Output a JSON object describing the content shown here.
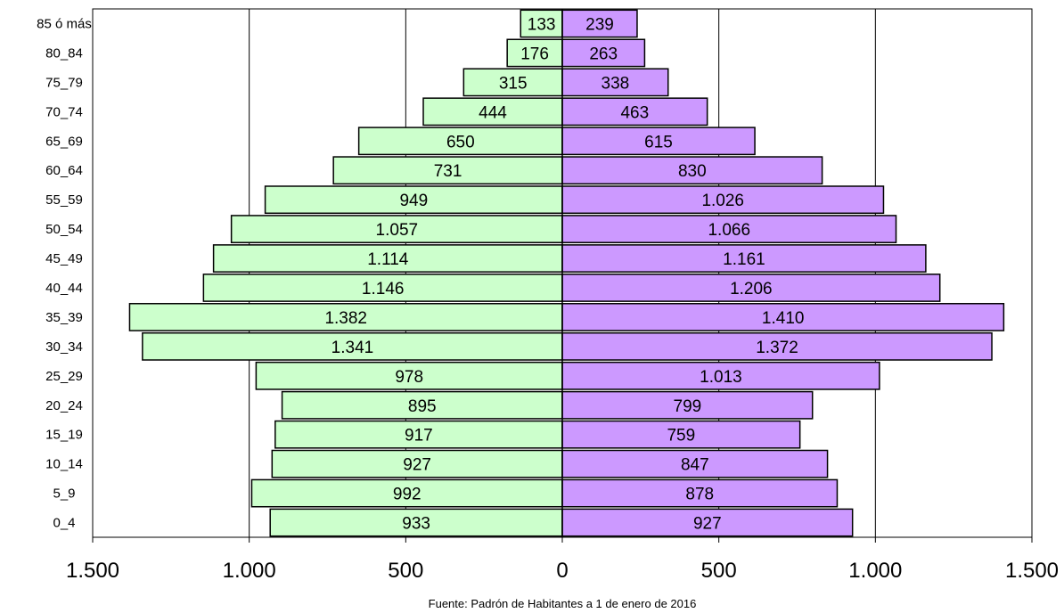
{
  "chart_data": {
    "type": "bar",
    "orientation": "horizontal",
    "layout": "population-pyramid",
    "categories": [
      "0_4",
      "5_9",
      "10_14",
      "15_19",
      "20_24",
      "25_29",
      "30_34",
      "35_39",
      "40_44",
      "45_49",
      "50_54",
      "55_59",
      "60_64",
      "65_69",
      "70_74",
      "75_79",
      "80_84",
      "85 ó más"
    ],
    "series": [
      {
        "side": "left",
        "color": "#ccffcc",
        "values": [
          933,
          992,
          927,
          917,
          895,
          978,
          1341,
          1382,
          1146,
          1114,
          1057,
          949,
          731,
          650,
          444,
          315,
          176,
          133
        ],
        "labels": [
          "933",
          "992",
          "927",
          "917",
          "895",
          "978",
          "1.341",
          "1.382",
          "1.146",
          "1.114",
          "1.057",
          "949",
          "731",
          "650",
          "444",
          "315",
          "176",
          "133"
        ]
      },
      {
        "side": "right",
        "color": "#cc99ff",
        "values": [
          927,
          878,
          847,
          759,
          799,
          1013,
          1372,
          1410,
          1206,
          1161,
          1066,
          1026,
          830,
          615,
          463,
          338,
          263,
          239
        ],
        "labels": [
          "927",
          "878",
          "847",
          "759",
          "799",
          "1.013",
          "1.372",
          "1.410",
          "1.206",
          "1.161",
          "1.066",
          "1.026",
          "830",
          "615",
          "463",
          "338",
          "263",
          "239"
        ]
      }
    ],
    "xlim": [
      -1500,
      1500
    ],
    "xticks": [
      -1500,
      -1000,
      -500,
      0,
      500,
      1000,
      1500
    ],
    "xtick_labels": [
      "1.500",
      "1.000",
      "500",
      "0",
      "500",
      "1.000",
      "1.500"
    ],
    "grid": "vertical",
    "source_note": "Fuente: Padrón de Habitantes a 1 de enero de 2016"
  }
}
